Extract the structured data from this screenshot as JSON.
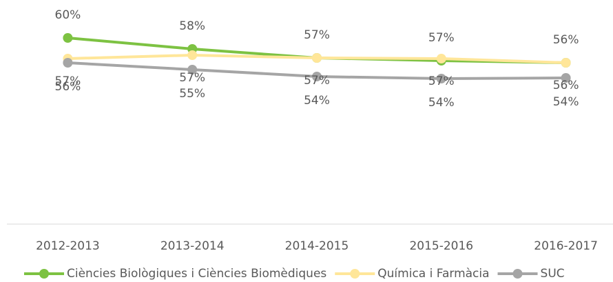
{
  "chart_data": {
    "type": "line",
    "categories": [
      "2012-2013",
      "2013-2014",
      "2014-2015",
      "2015-2016",
      "2016-2017"
    ],
    "ylim": [
      33,
      63
    ],
    "series": [
      {
        "name": "Ciències Biològiques i Ciències Biomèdiques",
        "color": "#7dc242",
        "values": [
          60.0,
          58.4,
          57.1,
          56.7,
          56.4
        ],
        "value_labels": [
          "60%",
          "58%",
          "57%",
          "57%",
          "56%"
        ],
        "label_position": "above"
      },
      {
        "name": "Química i Farmàcia",
        "color": "#ffe699",
        "values": [
          57.0,
          57.5,
          57.1,
          57.0,
          56.4
        ],
        "value_labels": [
          "57%",
          "57%",
          "57%",
          "57%",
          "56%"
        ],
        "label_position": "below"
      },
      {
        "name": "SUC",
        "color": "#a5a5a5",
        "values": [
          56.4,
          55.4,
          54.4,
          54.1,
          54.2
        ],
        "value_labels": [
          "56%",
          "55%",
          "54%",
          "54%",
          "54%"
        ],
        "label_position": "below"
      }
    ],
    "legend": "bottom"
  }
}
